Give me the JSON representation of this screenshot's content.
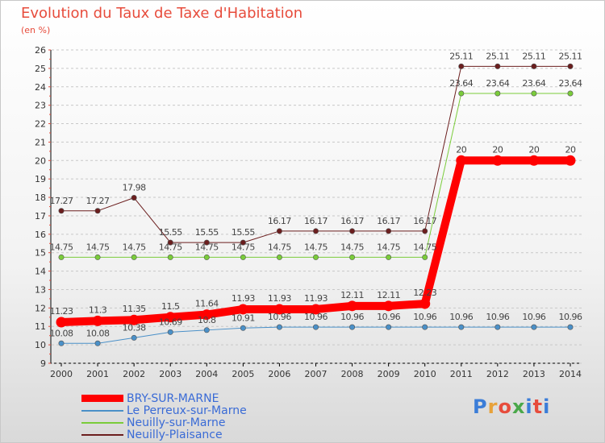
{
  "header": {
    "title": "Evolution du Taux de Taxe d'Habitation",
    "unit": "(en %)"
  },
  "logo": {
    "text": "Proxiti",
    "colors": [
      "#3b7dd8",
      "#e8a23a",
      "#e74c3c",
      "#4aa84a",
      "#3b7dd8",
      "#e74c3c",
      "#3b7dd8"
    ]
  },
  "chart_data": {
    "type": "line",
    "title": "Evolution du Taux de Taxe d'Habitation",
    "ylabel": "(en %)",
    "xlabel": "",
    "x": [
      "2000",
      "2001",
      "2002",
      "2003",
      "2004",
      "2005",
      "2006",
      "2007",
      "2008",
      "2009",
      "2010",
      "2011",
      "2012",
      "2013",
      "2014"
    ],
    "ylim": [
      9,
      26
    ],
    "yticks": [
      "9",
      "10",
      "11",
      "12",
      "13",
      "14",
      "15",
      "16",
      "17",
      "18",
      "19",
      "20",
      "21",
      "22",
      "23",
      "24",
      "25",
      "26"
    ],
    "grid": "horizontal dashed",
    "legend_position": "bottom-left",
    "series": [
      {
        "name": "BRY-SUR-MARNE",
        "color": "#ff0000",
        "width": 10,
        "values": [
          11.23,
          11.3,
          11.35,
          11.5,
          11.64,
          11.93,
          11.93,
          11.93,
          12.11,
          12.11,
          12.23,
          20,
          20,
          20,
          20
        ],
        "labels": [
          "11.23",
          "11.3",
          "11.35",
          "11.5",
          "11.64",
          "11.93",
          "11.93",
          "11.93",
          "12.11",
          "12.11",
          "12.23",
          "20",
          "20",
          "20",
          "20"
        ]
      },
      {
        "name": "Le Perreux-sur-Marne",
        "color": "#4a90c8",
        "width": 1,
        "values": [
          10.08,
          10.08,
          10.38,
          10.69,
          10.8,
          10.91,
          10.96,
          10.96,
          10.96,
          10.96,
          10.96,
          10.96,
          10.96,
          10.96,
          10.96
        ],
        "labels": [
          "10.08",
          "10.08",
          "10.38",
          "10.69",
          "10.8",
          "10.91",
          "10.96",
          "10.96",
          "10.96",
          "10.96",
          "10.96",
          "10.96",
          "10.96",
          "10.96",
          "10.96"
        ]
      },
      {
        "name": "Neuilly-sur-Marne",
        "color": "#7acc3a",
        "width": 1,
        "values": [
          14.75,
          14.75,
          14.75,
          14.75,
          14.75,
          14.75,
          14.75,
          14.75,
          14.75,
          14.75,
          14.75,
          23.64,
          23.64,
          23.64,
          23.64
        ],
        "labels": [
          "14.75",
          "14.75",
          "14.75",
          "14.75",
          "14.75",
          "14.75",
          "14.75",
          "14.75",
          "14.75",
          "14.75",
          "14.75",
          "23.64",
          "23.64",
          "23.64",
          "23.64"
        ]
      },
      {
        "name": "Neuilly-Plaisance",
        "color": "#6b1e1e",
        "width": 1,
        "values": [
          17.27,
          17.27,
          17.98,
          15.55,
          15.55,
          15.55,
          16.17,
          16.17,
          16.17,
          16.17,
          16.17,
          25.11,
          25.11,
          25.11,
          25.11
        ],
        "labels": [
          "17.27",
          "17.27",
          "17.98",
          "15.55",
          "15.55",
          "15.55",
          "16.17",
          "16.17",
          "16.17",
          "16.17",
          "16.17",
          "25.11",
          "25.11",
          "25.11",
          "25.11"
        ]
      }
    ]
  }
}
